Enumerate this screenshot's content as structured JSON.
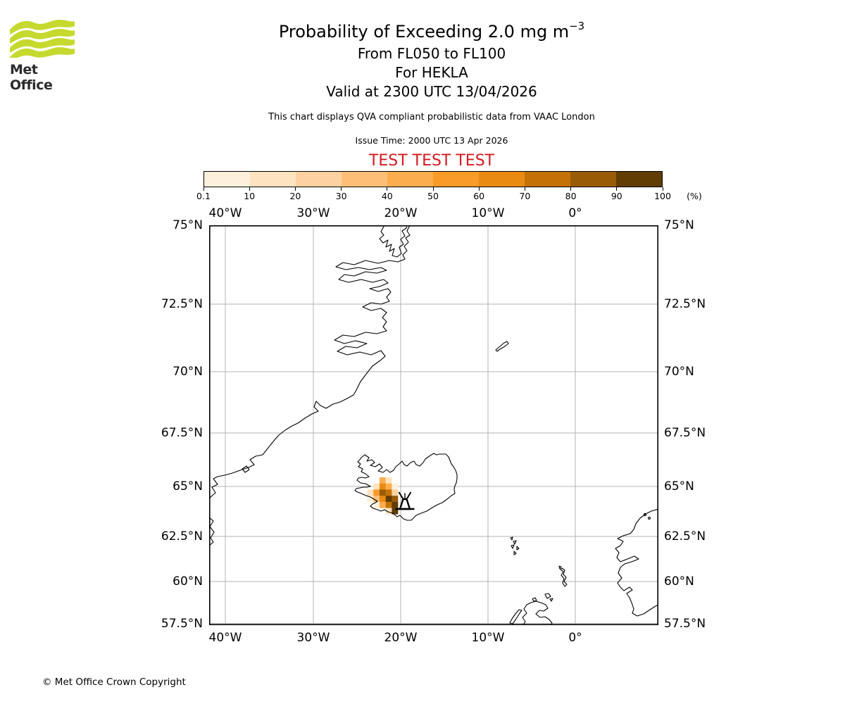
{
  "brand": {
    "logo_text": "Met Office",
    "logo_color": "#c6d92e"
  },
  "header": {
    "title": "Probability of Exceeding 2.0 mg m",
    "title_exponent": "−3",
    "subtitle_levels": "From FL050 to FL100",
    "subtitle_volcano": "For HEKLA",
    "subtitle_valid": "Valid at 2300 UTC 13/04/2026",
    "qva_note": "This chart displays QVA compliant probabilistic data from VAAC London",
    "issue_time": "Issue Time: 2000 UTC 13 Apr 2026",
    "test_banner": "TEST TEST TEST",
    "test_banner_color": "#d21a20"
  },
  "colorbar": {
    "tick_labels": [
      "0.1",
      "10",
      "20",
      "30",
      "40",
      "50",
      "60",
      "70",
      "80",
      "90",
      "100"
    ],
    "unit": "(%)",
    "colors": [
      "#fdf0dd",
      "#fde3c0",
      "#fdd2a0",
      "#fdbf78",
      "#fcae4f",
      "#f99b28",
      "#e98b12",
      "#c47208",
      "#9a5b07",
      "#613c03"
    ]
  },
  "map": {
    "axes": {
      "lon_labels": [
        "40°W",
        "30°W",
        "20°W",
        "10°W",
        "0°"
      ],
      "lat_labels": [
        "75°N",
        "72.5°N",
        "70°N",
        "67.5°N",
        "65°N",
        "62.5°N",
        "60°N",
        "57.5°N"
      ]
    }
  },
  "footer": {
    "copyright": "© Met Office Crown Copyright"
  },
  "chart_data": {
    "type": "heatmap",
    "title": "Probability of Exceeding 2.0 mg m−3",
    "layer": "FL050 to FL100",
    "volcano": "HEKLA",
    "valid_time": "2300 UTC 13/04/2026",
    "issue_time": "2000 UTC 13 Apr 2026",
    "source": "VAAC London",
    "lon_ticks_deg": [
      -40,
      -30,
      -20,
      -10,
      0
    ],
    "lat_ticks_deg": [
      75,
      72.5,
      70,
      67.5,
      65,
      62.5,
      60,
      57.5
    ],
    "probability_bins_percent": [
      0.1,
      10,
      20,
      30,
      40,
      50,
      60,
      70,
      80,
      90,
      100
    ],
    "palette": [
      "#fdf0dd",
      "#fde3c0",
      "#fdd2a0",
      "#fdbf78",
      "#fcae4f",
      "#f99b28",
      "#e98b12",
      "#c47208",
      "#9a5b07",
      "#613c03"
    ],
    "volcano_marker": {
      "symbol": "volcano",
      "approx_lon_deg": -19.7,
      "approx_lat_deg": 64.1
    },
    "cells_note": "probability patch over SW Iceland; [col,row,level] on ~0.7deg grid, level indexes palette / probability bin lower bound",
    "cells": [
      [
        2,
        0,
        4
      ],
      [
        3,
        0,
        1
      ],
      [
        1,
        1,
        1
      ],
      [
        2,
        1,
        6
      ],
      [
        3,
        1,
        4
      ],
      [
        4,
        1,
        0
      ],
      [
        0,
        2,
        1
      ],
      [
        1,
        2,
        5
      ],
      [
        2,
        2,
        8
      ],
      [
        3,
        2,
        7
      ],
      [
        4,
        2,
        2
      ],
      [
        0,
        3,
        0
      ],
      [
        1,
        3,
        3
      ],
      [
        2,
        3,
        6
      ],
      [
        3,
        3,
        9
      ],
      [
        4,
        3,
        8
      ],
      [
        1,
        4,
        0
      ],
      [
        2,
        4,
        4
      ],
      [
        3,
        4,
        7
      ],
      [
        4,
        4,
        9
      ],
      [
        3,
        5,
        1
      ],
      [
        4,
        5,
        9
      ]
    ]
  }
}
